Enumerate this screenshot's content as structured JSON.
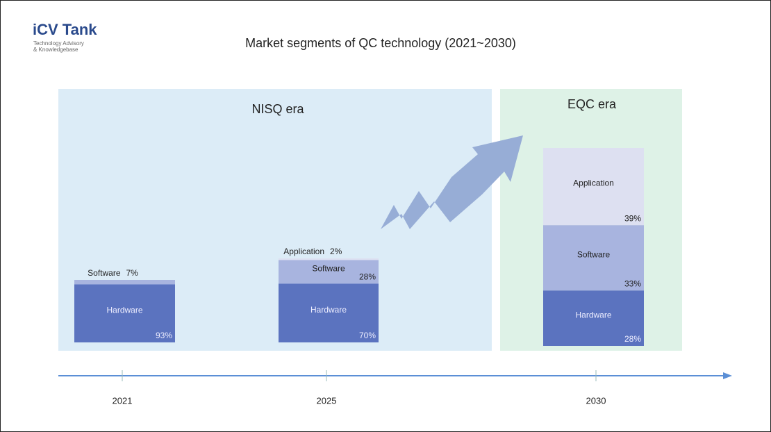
{
  "brand": {
    "name": "iCV Tank",
    "tagline": [
      "Technology Advisory",
      "& Knowledgebase"
    ]
  },
  "chart_data": {
    "type": "stacked-bar",
    "title": "Market segments of QC technology (2021~2030)",
    "eras": [
      "NISQ era",
      "EQC era"
    ],
    "categories": [
      "2021",
      "2025",
      "2030"
    ],
    "series": [
      {
        "name": "Hardware",
        "color": "#5b73bf",
        "values": [
          93,
          70,
          28
        ],
        "value_labels": [
          "93%",
          "70%",
          "28%"
        ]
      },
      {
        "name": "Software",
        "color": "#a8b4df",
        "values": [
          7,
          28,
          33
        ],
        "value_labels": [
          "7%",
          "28%",
          "33%"
        ]
      },
      {
        "name": "Application",
        "color": "#dde0f1",
        "values": [
          null,
          2,
          39
        ],
        "value_labels": [
          null,
          "2%",
          "39%"
        ]
      }
    ]
  }
}
